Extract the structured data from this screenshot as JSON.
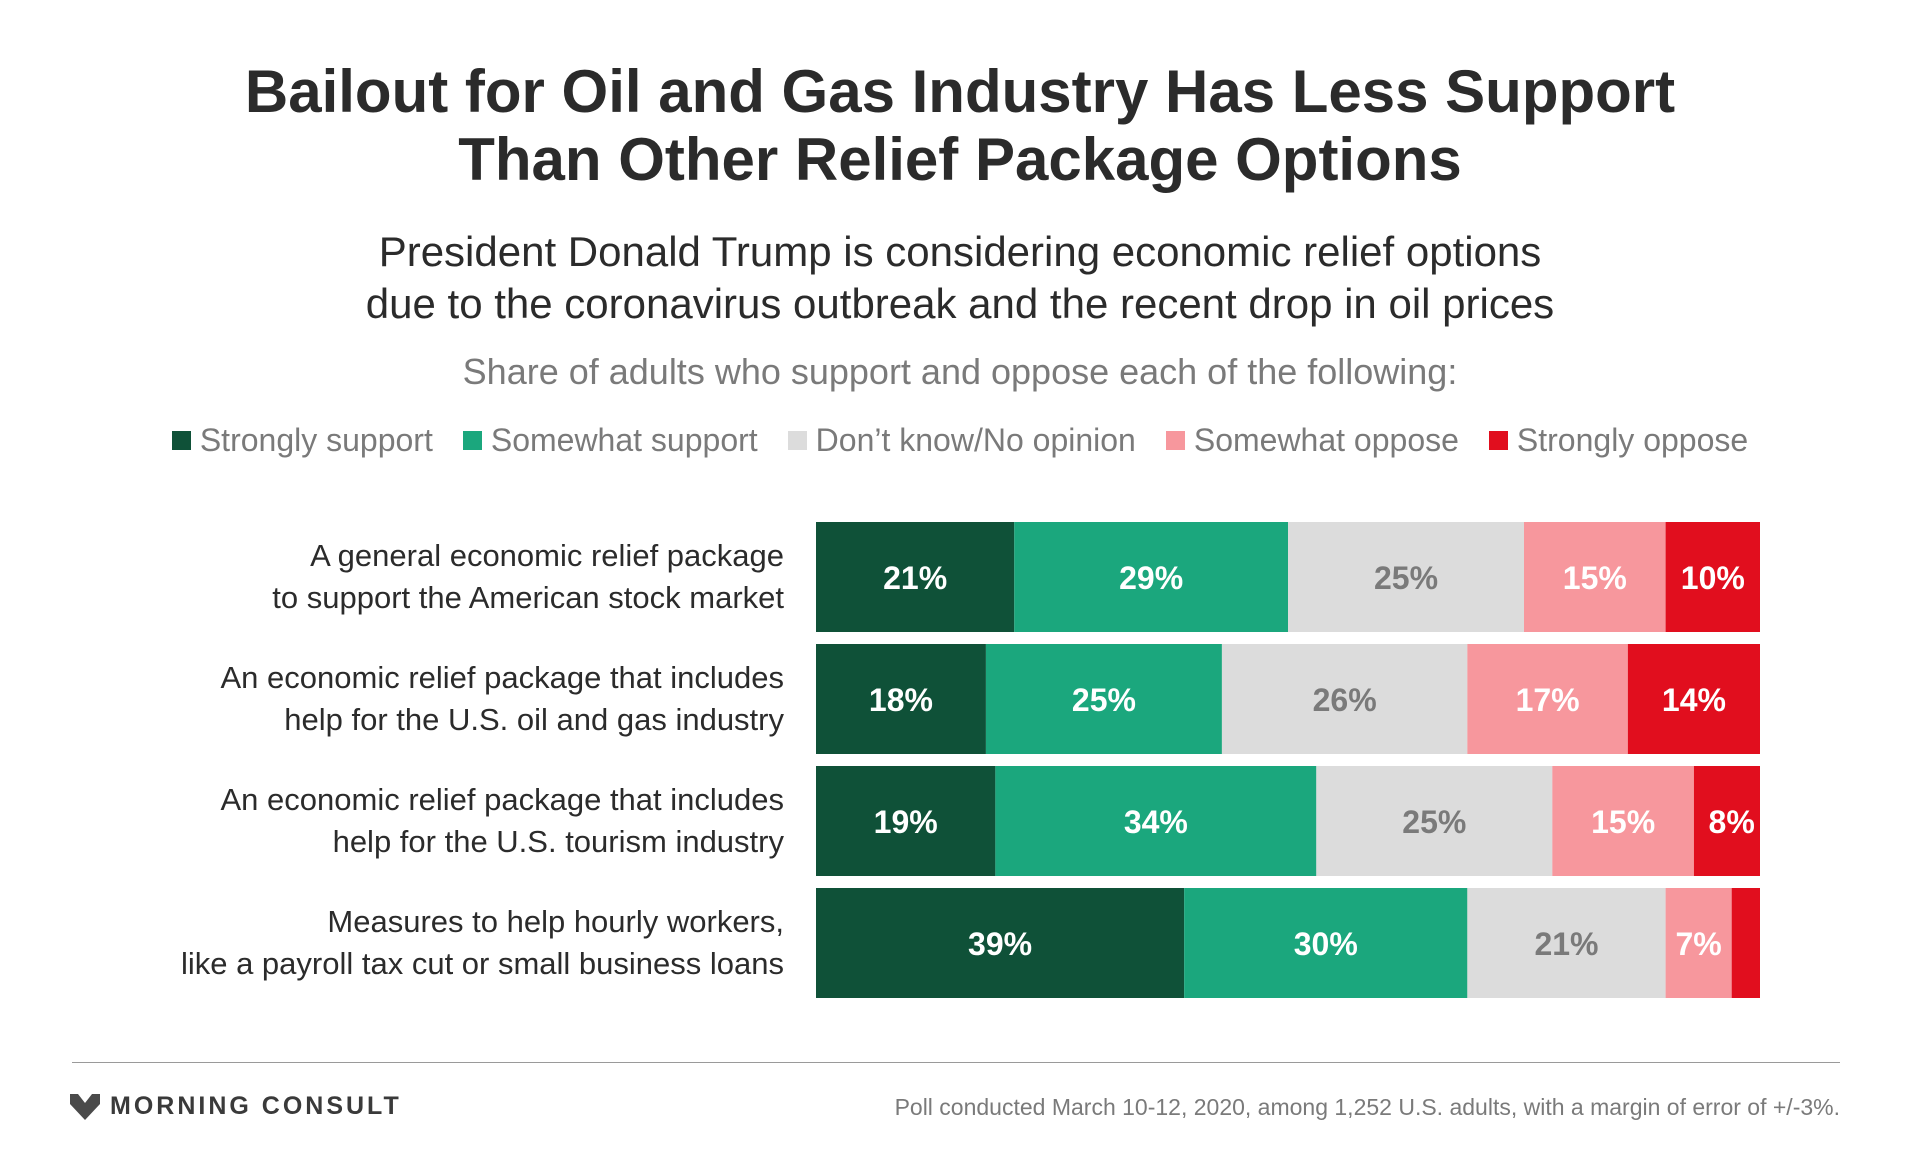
{
  "title_line1": "Bailout for Oil and Gas Industry Has Less Support",
  "title_line2": "Than Other Relief Package Options",
  "subtitle_line1": "President Donald Trump is considering economic relief options",
  "subtitle_line2": "due to the coronavirus outbreak and the recent drop in oil prices",
  "question": "Share of adults who support and oppose each of the following:",
  "brand": "MORNING CONSULT",
  "footnote": "Poll conducted March 10-12, 2020, among 1,252 U.S. adults, with a margin of error of +/-3%.",
  "chart_data": {
    "type": "bar",
    "orientation": "horizontal",
    "stacked": true,
    "title": "Bailout for Oil and Gas Industry Has Less Support Than Other Relief Package Options",
    "unit": "%",
    "xlim": [
      0,
      100
    ],
    "categories": [
      [
        "A general economic relief package",
        "to support the American stock market"
      ],
      [
        "An economic relief package that includes",
        "help for the U.S. oil and gas industry"
      ],
      [
        "An economic relief package that includes",
        "help for the U.S. tourism industry"
      ],
      [
        "Measures to help hourly workers,",
        "like a payroll tax cut or small business loans"
      ]
    ],
    "series": [
      {
        "name": "Strongly support",
        "color": "#0f5138",
        "text_color": "#ffffff",
        "values": [
          21,
          18,
          19,
          39
        ],
        "labels": [
          "21%",
          "18%",
          "19%",
          "39%"
        ]
      },
      {
        "name": "Somewhat support",
        "color": "#1ba77d",
        "text_color": "#ffffff",
        "values": [
          29,
          25,
          34,
          30
        ],
        "labels": [
          "29%",
          "25%",
          "34%",
          "30%"
        ]
      },
      {
        "name": "Don’t know/No opinion",
        "color": "#dcdcdc",
        "text_color": "#7a7a7a",
        "values": [
          25,
          26,
          25,
          21
        ],
        "labels": [
          "25%",
          "26%",
          "25%",
          "21%"
        ]
      },
      {
        "name": "Somewhat oppose",
        "color": "#f7979d",
        "text_color": "#ffffff",
        "values": [
          15,
          17,
          15,
          7
        ],
        "labels": [
          "15%",
          "17%",
          "15%",
          "7%"
        ]
      },
      {
        "name": "Strongly oppose",
        "color": "#e10e1e",
        "text_color": "#ffffff",
        "values": [
          10,
          14,
          8,
          3
        ],
        "labels": [
          "10%",
          "14%",
          "8%",
          ""
        ]
      }
    ]
  }
}
